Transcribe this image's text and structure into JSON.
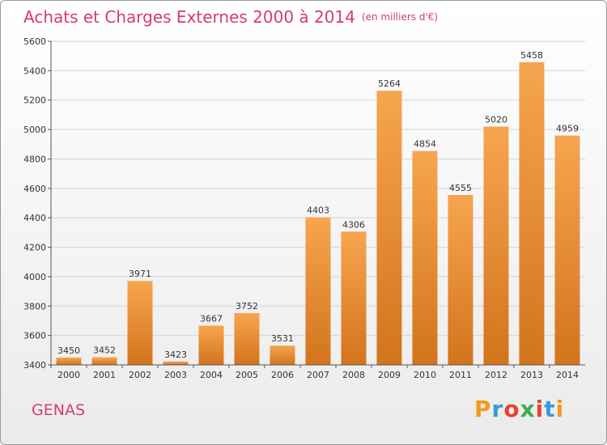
{
  "header": {
    "title": "Achats et Charges Externes 2000 à 2014",
    "unit": "(en milliers d'€)"
  },
  "footer": {
    "city": "GENAS",
    "logo_text": "Proxiti"
  },
  "colors": {
    "accent": "#d63a73",
    "bar_light": "#f7a550",
    "bar_dark": "#d2741c"
  },
  "chart_data": {
    "type": "bar",
    "title": "Achats et Charges Externes 2000 à 2014",
    "subtitle": "(en milliers d'€)",
    "categories": [
      "2000",
      "2001",
      "2002",
      "2003",
      "2004",
      "2005",
      "2006",
      "2007",
      "2008",
      "2009",
      "2010",
      "2011",
      "2012",
      "2013",
      "2014"
    ],
    "values": [
      3450,
      3452,
      3971,
      3423,
      3667,
      3752,
      3531,
      4403,
      4306,
      5264,
      4854,
      4555,
      5020,
      5458,
      4959
    ],
    "ylim": [
      3400,
      5600
    ],
    "yticks": [
      3400,
      3600,
      3800,
      4000,
      4200,
      4400,
      4600,
      4800,
      5000,
      5200,
      5400,
      5600
    ],
    "grid": true
  }
}
